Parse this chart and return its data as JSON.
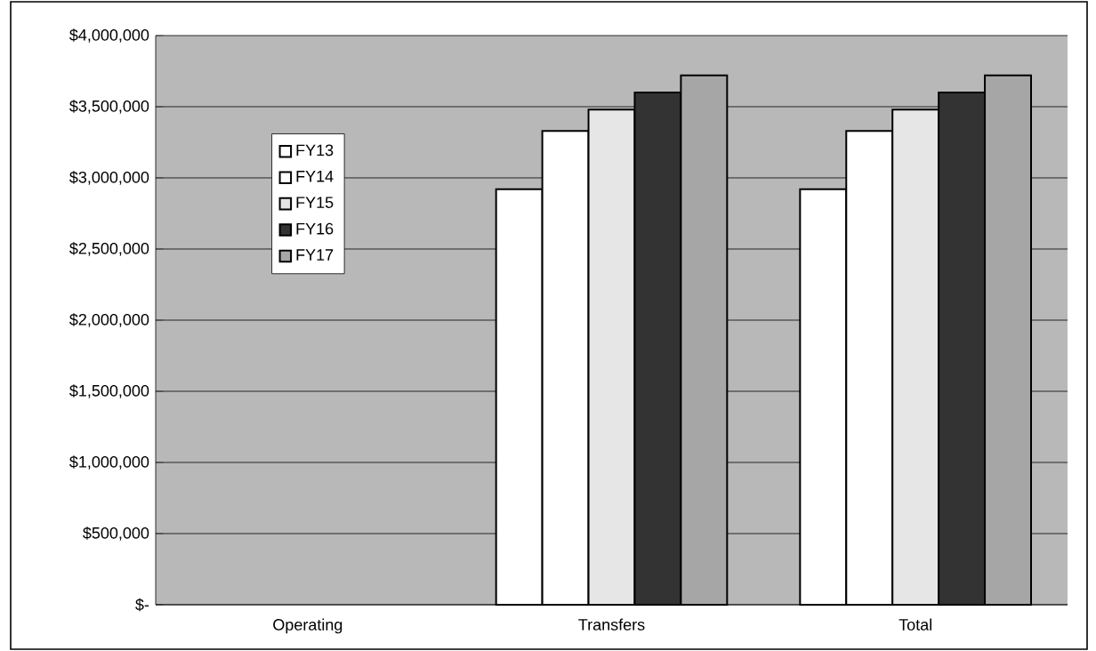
{
  "chart_data": {
    "type": "bar",
    "categories": [
      "Operating",
      "Transfers",
      "Total"
    ],
    "series": [
      {
        "name": "FY13",
        "color": "#ffffff",
        "values": [
          null,
          2920000,
          2920000
        ]
      },
      {
        "name": "FY14",
        "color": "#ffffff",
        "values": [
          null,
          3330000,
          3330000
        ]
      },
      {
        "name": "FY15",
        "color": "#e6e6e6",
        "values": [
          null,
          3480000,
          3480000
        ]
      },
      {
        "name": "FY16",
        "color": "#333333",
        "values": [
          null,
          3600000,
          3600000
        ]
      },
      {
        "name": "FY17",
        "color": "#a6a6a6",
        "values": [
          null,
          3720000,
          3720000
        ]
      }
    ],
    "ylim": [
      0,
      4000000
    ],
    "yticks": [
      {
        "value": 0,
        "label": "$-"
      },
      {
        "value": 500000,
        "label": "$500,000"
      },
      {
        "value": 1000000,
        "label": "$1,000,000"
      },
      {
        "value": 1500000,
        "label": "$1,500,000"
      },
      {
        "value": 2000000,
        "label": "$2,000,000"
      },
      {
        "value": 2500000,
        "label": "$2,500,000"
      },
      {
        "value": 3000000,
        "label": "$3,000,000"
      },
      {
        "value": 3500000,
        "label": "$3,500,000"
      },
      {
        "value": 4000000,
        "label": "$4,000,000"
      }
    ],
    "grid": "y",
    "legend": "top left"
  }
}
